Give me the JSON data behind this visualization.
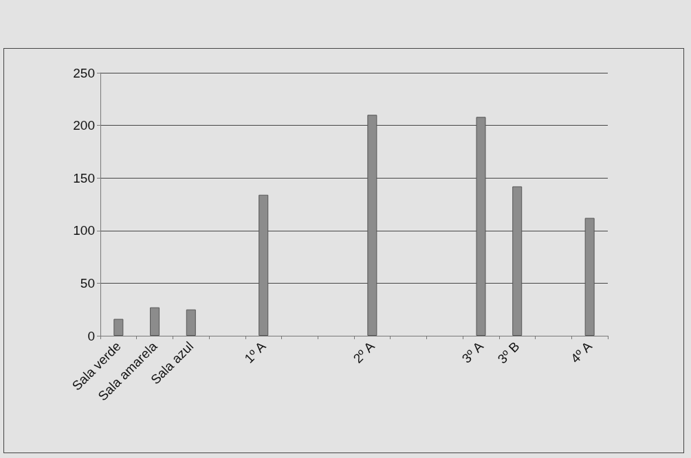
{
  "chart_data": {
    "type": "bar",
    "categories": [
      "Sala verde",
      "Sala amarela",
      "Sala azul",
      null,
      "1º A",
      null,
      null,
      "2º A",
      null,
      null,
      "3º A",
      "3º B",
      null,
      "4º A"
    ],
    "values": [
      16,
      27,
      25,
      null,
      134,
      null,
      null,
      210,
      null,
      null,
      208,
      142,
      null,
      112
    ],
    "color": "#8c8c8c",
    "ylim": [
      0,
      250
    ],
    "yticks": [
      0,
      50,
      100,
      150,
      200,
      250
    ],
    "grid": "y"
  }
}
